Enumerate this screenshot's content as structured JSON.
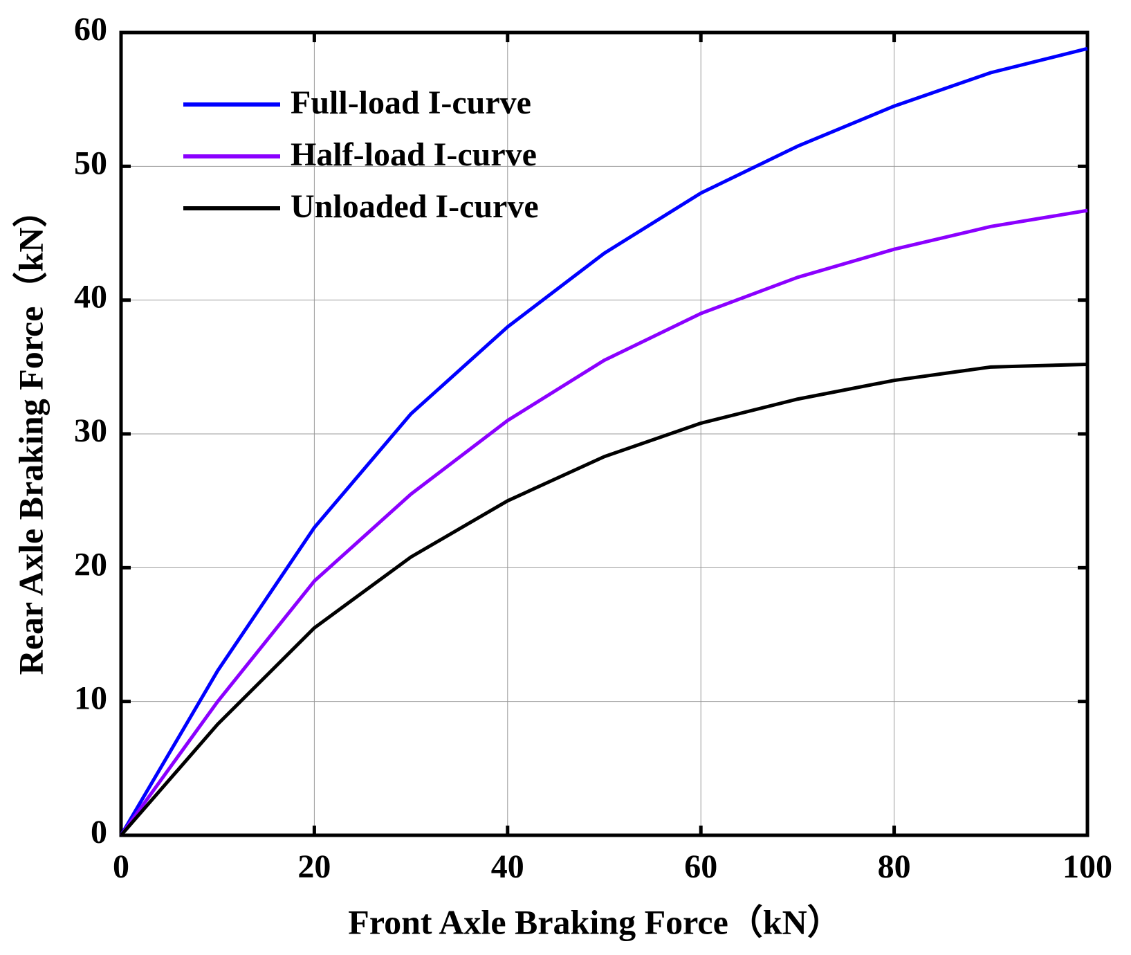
{
  "chart_data": {
    "type": "line",
    "x_label": "Front Axle Braking Force（kN）",
    "y_label": "Rear Axle Braking Force（kN）",
    "x": [
      0,
      10,
      20,
      30,
      40,
      50,
      60,
      70,
      80,
      90,
      100
    ],
    "series": [
      {
        "name": "Full-load I-curve",
        "color": "#0000ff",
        "values": [
          0,
          12.3,
          23,
          31.5,
          38,
          43.5,
          48,
          51.5,
          54.5,
          57,
          58.8
        ]
      },
      {
        "name": "Half-load I-curve",
        "color": "#8b00ff",
        "values": [
          0,
          10,
          19,
          25.5,
          31,
          35.5,
          39,
          41.7,
          43.8,
          45.5,
          46.7
        ]
      },
      {
        "name": "Unloaded I-curve",
        "color": "#000000",
        "values": [
          0,
          8.3,
          15.5,
          20.8,
          25,
          28.3,
          30.8,
          32.6,
          34,
          35,
          35.2
        ]
      }
    ],
    "xlim": [
      0,
      100
    ],
    "xticks": [
      0,
      20,
      40,
      60,
      80,
      100
    ],
    "ylim": [
      0,
      60
    ],
    "yticks": [
      0,
      10,
      20,
      30,
      40,
      50,
      60
    ],
    "grid": true,
    "legend": "upper left"
  }
}
